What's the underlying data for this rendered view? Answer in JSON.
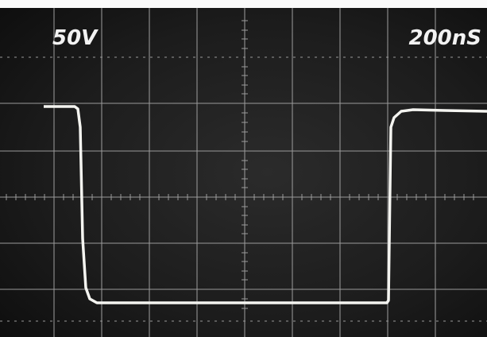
{
  "screen": {
    "volts_per_div": "50V",
    "time_per_div": "200nS"
  }
}
